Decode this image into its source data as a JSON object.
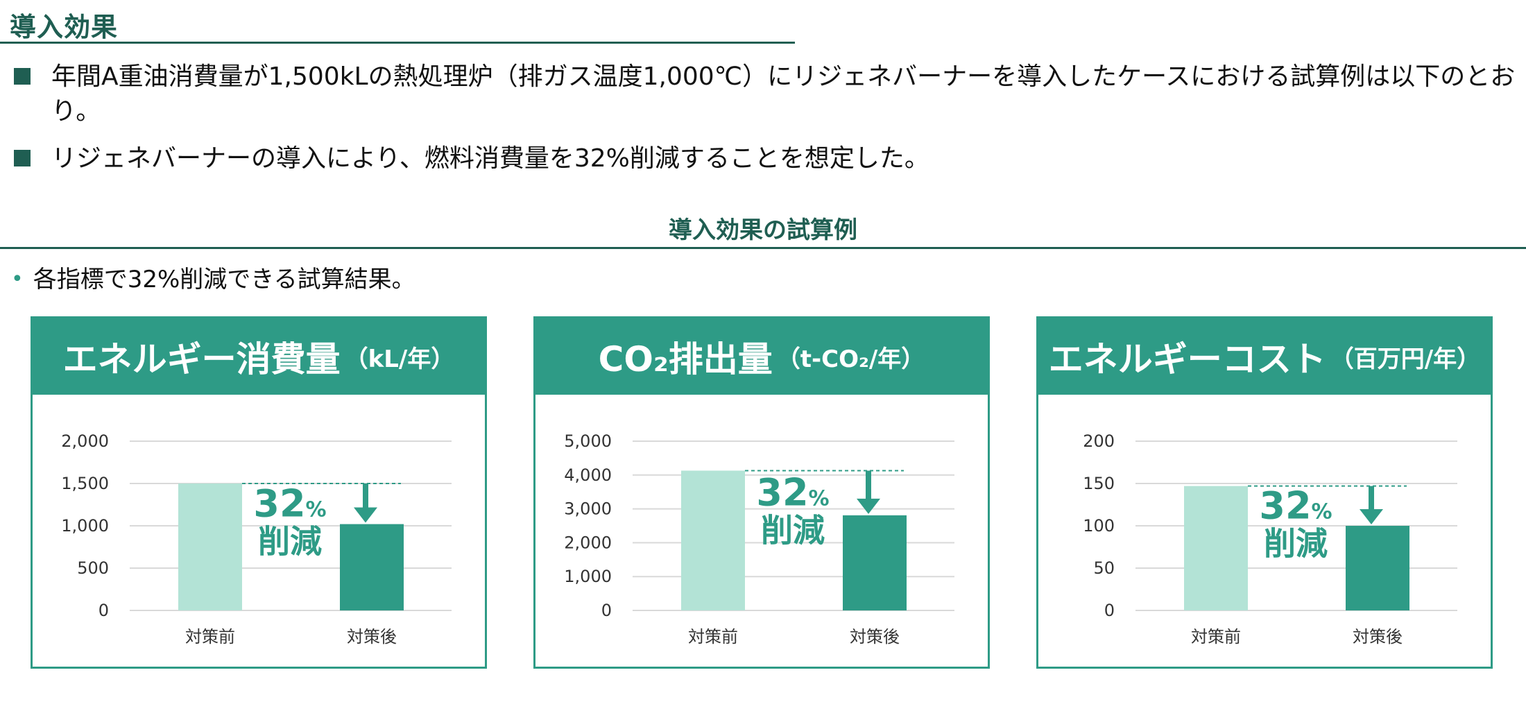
{
  "page": {
    "title": "導入効果",
    "bullets": [
      "年間A重油消費量が1,500kLの熱処理炉（排ガス温度1,000℃）にリジェネバーナーを導入したケースにおける試算例は以下のとおり。",
      "リジェネバーナーの導入により、燃料消費量を32%削減することを想定した。"
    ],
    "section_title": "導入効果の試算例",
    "note": "各指標で32%削減できる試算結果。"
  },
  "colors": {
    "dark_green": "#1f5e52",
    "teal": "#2e9b86",
    "light_teal": "#b3e3d6",
    "grid": "#d9d9d9"
  },
  "reduction_label": {
    "percent": "32",
    "percent_sign": "%",
    "text": "削減"
  },
  "chart_data": [
    {
      "type": "bar",
      "title_main": "エネルギー消費量",
      "title_unit": "（kL/年）",
      "categories": [
        "対策前",
        "対策後"
      ],
      "values": [
        1500,
        1020
      ],
      "ylim": [
        0,
        2000
      ],
      "yticks": [
        "0",
        "500",
        "1,000",
        "1,500",
        "2,000"
      ],
      "ytick_values": [
        0,
        500,
        1000,
        1500,
        2000
      ],
      "grid": true,
      "legend": "none"
    },
    {
      "type": "bar",
      "title_main": "CO₂排出量",
      "title_unit": "（t-CO₂/年）",
      "categories": [
        "対策前",
        "対策後"
      ],
      "values": [
        4130,
        2810
      ],
      "ylim": [
        0,
        5000
      ],
      "yticks": [
        "0",
        "1,000",
        "2,000",
        "3,000",
        "4,000",
        "5,000"
      ],
      "ytick_values": [
        0,
        1000,
        2000,
        3000,
        4000,
        5000
      ],
      "grid": true,
      "legend": "none"
    },
    {
      "type": "bar",
      "title_main": "エネルギーコスト",
      "title_unit": "（百万円/年）",
      "categories": [
        "対策前",
        "対策後"
      ],
      "values": [
        147,
        100
      ],
      "ylim": [
        0,
        200
      ],
      "yticks": [
        "0",
        "50",
        "100",
        "150",
        "200"
      ],
      "ytick_values": [
        0,
        50,
        100,
        150,
        200
      ],
      "grid": true,
      "legend": "none"
    }
  ]
}
